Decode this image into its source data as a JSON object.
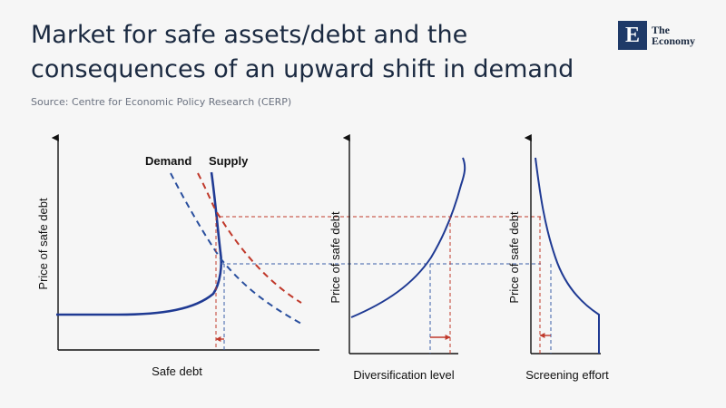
{
  "header": {
    "title_line1": "Market for safe assets/debt and the",
    "title_line2": "consequences of an upward shift in demand",
    "source": "Source: Centre for Economic Policy Research (CERP)"
  },
  "logo": {
    "letter": "E",
    "line1": "The",
    "line2": "Economy"
  },
  "diagram": {
    "panel_left": {
      "ylabel": "Price of safe debt",
      "xlabel": "Safe debt",
      "demand_label": "Demand",
      "supply_label": "Supply"
    },
    "panel_middle": {
      "ylabel": "Price of safe debt",
      "xlabel": "Diversification level"
    },
    "panel_right": {
      "ylabel": "Price of safe debt",
      "xlabel": "Screening effort"
    }
  },
  "colors": {
    "supply_curve": "#1f3a93",
    "demand_initial": "#2a4f9e",
    "demand_shifted": "#c0392b",
    "guide_blue": "#3b5ea8",
    "guide_red": "#c0392b",
    "title": "#1b2a41",
    "logo_bg": "#1f3a68"
  }
}
